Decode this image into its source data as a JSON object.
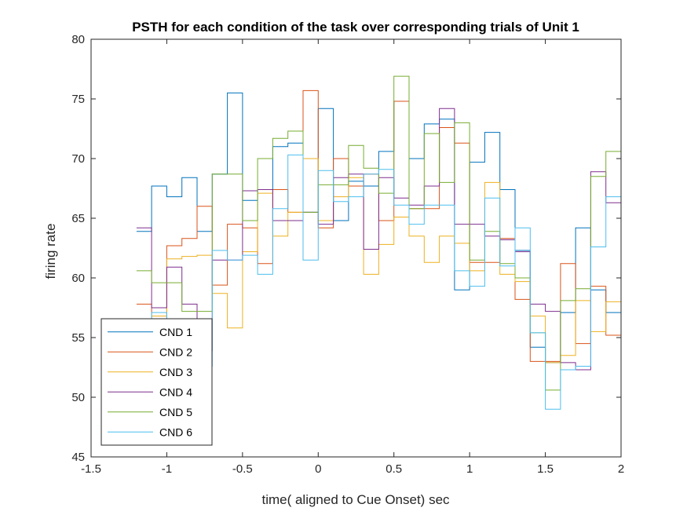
{
  "chart_data": {
    "type": "line",
    "step": true,
    "title": "PSTH for each condition of the task over corresponding trials of Unit 1",
    "xlabel": "time( aligned to Cue Onset) sec",
    "ylabel": "firing rate",
    "xlim": [
      -1.5,
      2
    ],
    "ylim": [
      45,
      80
    ],
    "xticks": [
      "-1.5",
      "-1",
      "-0.5",
      "0",
      "0.5",
      "1",
      "1.5",
      "2"
    ],
    "yticks": [
      "45",
      "50",
      "55",
      "60",
      "65",
      "70",
      "75",
      "80"
    ],
    "grid": false,
    "legend_position": "bottom-left",
    "x": [
      -1.2,
      -1.1,
      -1.0,
      -0.9,
      -0.8,
      -0.7,
      -0.6,
      -0.5,
      -0.4,
      -0.3,
      -0.2,
      -0.1,
      0.0,
      0.1,
      0.2,
      0.3,
      0.4,
      0.5,
      0.6,
      0.7,
      0.8,
      0.9,
      1.0,
      1.1,
      1.2,
      1.3,
      1.4,
      1.5,
      1.6,
      1.7,
      1.8,
      1.9,
      2.0
    ],
    "series": [
      {
        "name": "CND 1",
        "color": "#0072BD",
        "values": [
          63.9,
          67.7,
          66.8,
          68.4,
          63.9,
          68.7,
          75.5,
          66.5,
          67.4,
          71.0,
          71.3,
          65.5,
          74.2,
          64.8,
          68.1,
          67.7,
          70.6,
          74.8,
          70.0,
          72.9,
          73.3,
          59.0,
          69.7,
          72.2,
          67.4,
          62.3,
          54.2,
          52.9,
          57.1,
          64.2,
          59.0,
          57.1,
          57.1
        ]
      },
      {
        "name": "CND 2",
        "color": "#D95319",
        "values": [
          57.8,
          56.5,
          62.7,
          63.3,
          66.0,
          59.4,
          64.5,
          64.2,
          61.2,
          67.4,
          65.5,
          75.7,
          64.2,
          70.0,
          67.7,
          68.7,
          64.8,
          74.8,
          65.8,
          65.8,
          72.6,
          71.3,
          61.3,
          61.3,
          63.3,
          58.2,
          53.0,
          53.0,
          61.2,
          54.5,
          59.3,
          55.2,
          55.2
        ]
      },
      {
        "name": "CND 3",
        "color": "#EDB120",
        "values": [
          54.5,
          56.8,
          61.6,
          61.8,
          61.9,
          58.7,
          55.8,
          62.2,
          67.1,
          63.5,
          65.5,
          70.0,
          64.8,
          66.8,
          68.4,
          60.3,
          62.8,
          65.1,
          63.5,
          61.3,
          63.5,
          62.9,
          60.6,
          68.0,
          60.3,
          59.7,
          56.8,
          52.9,
          53.5,
          58.1,
          55.5,
          58.0,
          58.0
        ]
      },
      {
        "name": "CND 4",
        "color": "#7E2F8E",
        "values": [
          64.2,
          57.5,
          60.9,
          57.8,
          53.9,
          61.5,
          61.5,
          67.3,
          67.4,
          64.8,
          64.8,
          65.5,
          64.5,
          68.4,
          68.7,
          62.4,
          68.4,
          66.7,
          66.1,
          67.7,
          74.2,
          64.5,
          64.5,
          63.5,
          63.2,
          62.2,
          57.8,
          57.2,
          52.9,
          52.3,
          68.9,
          66.3,
          66.3
        ]
      },
      {
        "name": "CND 5",
        "color": "#77AC30",
        "values": [
          60.6,
          59.6,
          59.6,
          57.2,
          57.2,
          68.7,
          68.7,
          64.8,
          70.0,
          71.7,
          72.3,
          65.5,
          67.8,
          67.8,
          71.1,
          69.2,
          67.1,
          76.9,
          65.8,
          72.1,
          68.0,
          73.0,
          61.5,
          63.9,
          61.2,
          60.0,
          55.4,
          50.6,
          58.1,
          59.1,
          68.5,
          70.6,
          70.6
        ]
      },
      {
        "name": "CND 6",
        "color": "#4DBEEE",
        "values": [
          54.4,
          57.1,
          56.0,
          54.8,
          52.6,
          62.3,
          61.5,
          61.9,
          60.3,
          65.8,
          70.3,
          61.5,
          69.0,
          66.4,
          66.8,
          68.7,
          69.1,
          66.1,
          64.5,
          66.1,
          66.1,
          60.6,
          59.3,
          66.7,
          61.0,
          64.2,
          55.4,
          49.0,
          52.3,
          52.6,
          62.6,
          66.8,
          66.8
        ]
      }
    ]
  }
}
